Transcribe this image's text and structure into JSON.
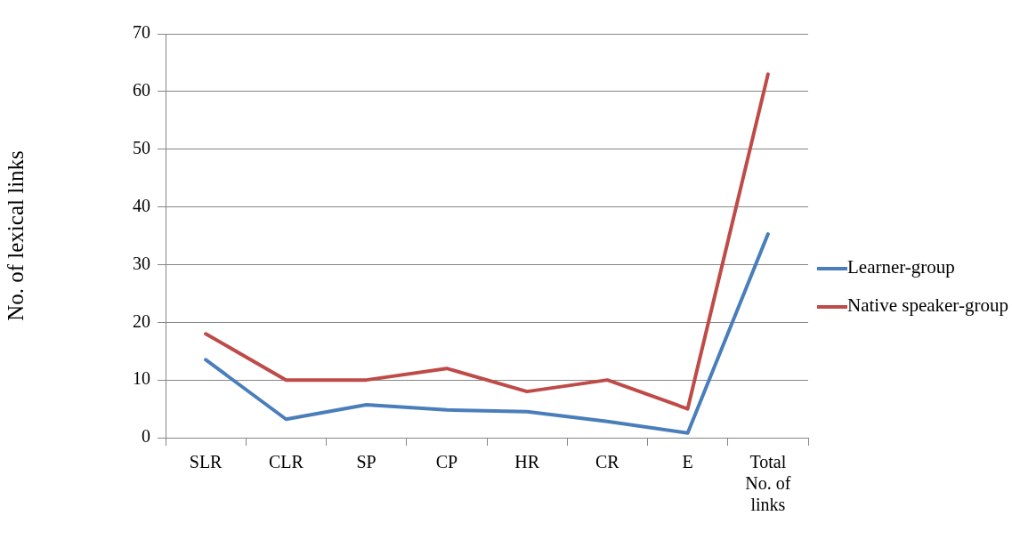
{
  "chart_data": {
    "type": "line",
    "ylabel": "No. of lexical links",
    "categories": [
      "SLR",
      "CLR",
      "SP",
      "CP",
      "HR",
      "CR",
      "E",
      "Total No. of links"
    ],
    "series": [
      {
        "name": "Learner-group",
        "color": "#4a7ebb",
        "values": [
          13.5,
          3.2,
          5.7,
          4.8,
          4.5,
          2.8,
          0.8,
          35.3
        ]
      },
      {
        "name": "Native speaker-group",
        "color": "#be4b48",
        "values": [
          18,
          10,
          10,
          12,
          8,
          10,
          5,
          63
        ]
      }
    ],
    "ylim": [
      0,
      70
    ],
    "yticks": [
      0,
      10,
      20,
      30,
      40,
      50,
      60,
      70
    ],
    "grid": "y",
    "legend": "right",
    "marker": "none"
  }
}
